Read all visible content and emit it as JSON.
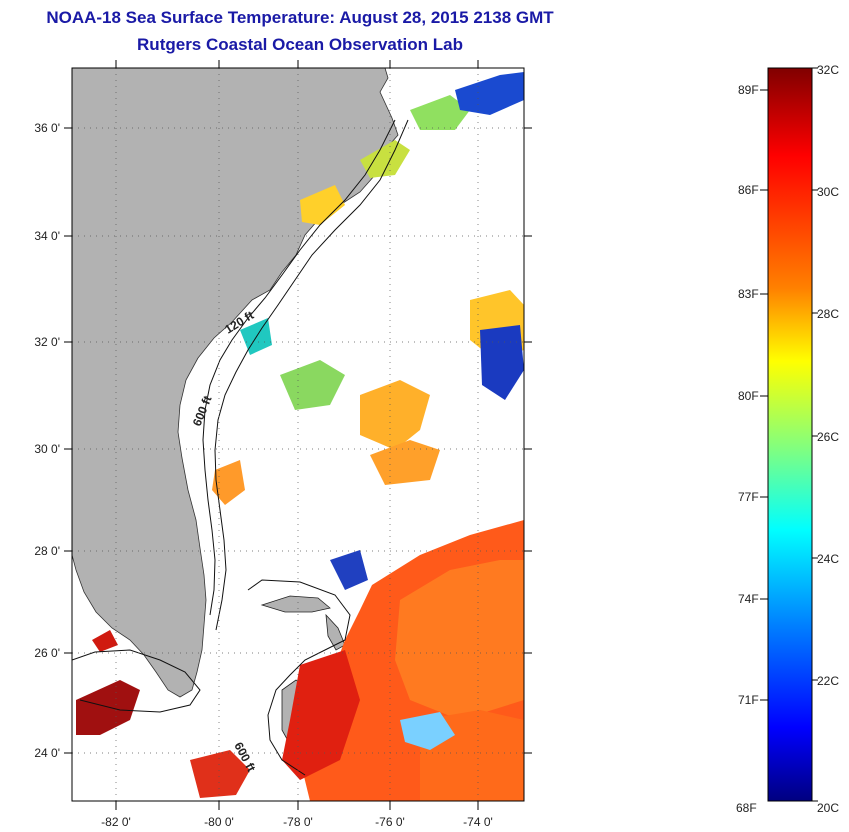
{
  "header": {
    "title": "NOAA-18 Sea Surface Temperature:  August 28, 2015 2138 GMT",
    "subtitle": "Rutgers Coastal Ocean Observation Lab"
  },
  "map": {
    "lon_ticks": [
      "-82 0'",
      "-80 0'",
      "-78 0'",
      "-76 0'",
      "-74 0'"
    ],
    "lat_ticks": [
      "36 0'",
      "34 0'",
      "32 0'",
      "30 0'",
      "28 0'",
      "26 0'",
      "24 0'"
    ],
    "lon_range": [
      -83,
      -73
    ],
    "lat_range": [
      23,
      37
    ],
    "contours": [
      {
        "label": "120 ft"
      },
      {
        "label": "600 ft"
      },
      {
        "label": "600 ft"
      }
    ],
    "colors": {
      "land": "#b2b2b2",
      "ocean": "#ffffff"
    }
  },
  "colorbar": {
    "fahrenheit": [
      "89F",
      "86F",
      "83F",
      "80F",
      "77F",
      "74F",
      "71F",
      "68F"
    ],
    "celsius": [
      "32C",
      "30C",
      "28C",
      "26C",
      "24C",
      "22C",
      "20C"
    ],
    "stops": [
      "#800000",
      "#ff0000",
      "#ff8000",
      "#ffff00",
      "#80ff80",
      "#00ffff",
      "#0080ff",
      "#0000ff",
      "#000080"
    ]
  }
}
